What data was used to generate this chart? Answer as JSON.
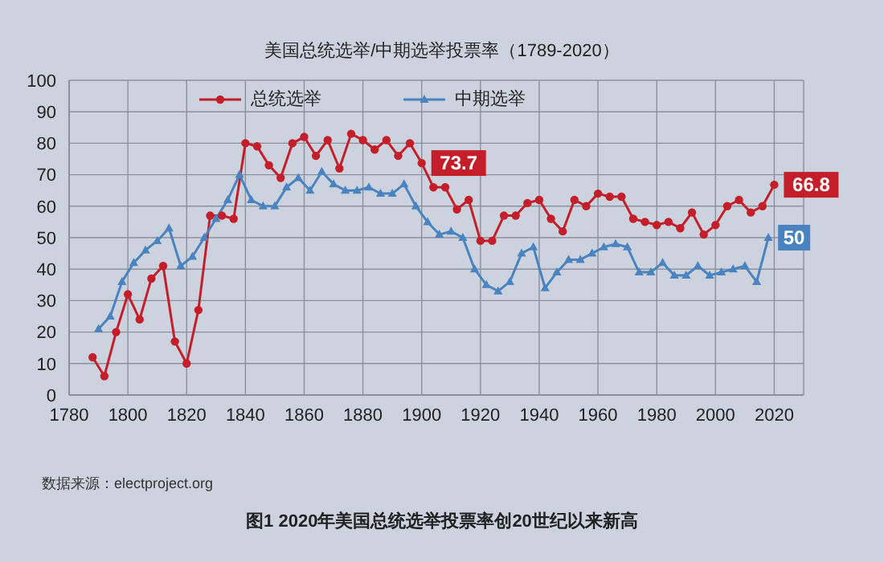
{
  "chart_data": {
    "type": "line",
    "title": "美国总统选举/中期选举投票率（1789-2020）",
    "annotations": [
      "数据来源：electproject.org",
      "图1 2020年美国总统选举投票率创20世纪以来新高"
    ],
    "xlim": [
      1780,
      2030
    ],
    "xticks": [
      1780,
      1800,
      1820,
      1840,
      1860,
      1880,
      1900,
      1920,
      1940,
      1960,
      1980,
      2000,
      2020
    ],
    "ylim": [
      0,
      100
    ],
    "yticks": [
      0,
      10,
      20,
      30,
      40,
      50,
      60,
      70,
      80,
      90,
      100
    ],
    "grid": true,
    "legend": "top",
    "line_style": "solid",
    "series": [
      {
        "name": "总统选举",
        "color": "#c41e2a",
        "marker": "circle",
        "x": [
          1788,
          1792,
          1796,
          1800,
          1804,
          1808,
          1812,
          1816,
          1820,
          1824,
          1828,
          1832,
          1836,
          1840,
          1844,
          1848,
          1852,
          1856,
          1860,
          1864,
          1868,
          1872,
          1876,
          1880,
          1884,
          1888,
          1892,
          1896,
          1900,
          1904,
          1908,
          1912,
          1916,
          1920,
          1924,
          1928,
          1932,
          1936,
          1940,
          1944,
          1948,
          1952,
          1956,
          1960,
          1964,
          1968,
          1972,
          1976,
          1980,
          1984,
          1988,
          1992,
          1996,
          2000,
          2004,
          2008,
          2012,
          2016,
          2020
        ],
        "values": [
          12,
          6,
          20,
          32,
          24,
          37,
          41,
          17,
          10,
          27,
          57,
          57,
          56,
          80,
          79,
          73,
          69,
          80,
          82,
          76,
          81,
          72,
          83,
          81,
          78,
          81,
          76,
          80,
          73.7,
          66,
          66,
          59,
          62,
          49,
          49,
          57,
          57,
          61,
          62,
          56,
          52,
          62,
          60,
          64,
          63,
          63,
          56,
          55,
          54,
          55,
          53,
          58,
          51,
          54,
          60,
          62,
          58,
          60,
          66.8
        ],
        "value_labels": [
          null,
          null,
          null,
          null,
          null,
          null,
          null,
          null,
          null,
          null,
          null,
          null,
          null,
          null,
          null,
          null,
          null,
          null,
          null,
          null,
          null,
          null,
          null,
          null,
          null,
          null,
          null,
          null,
          "73.7",
          null,
          null,
          null,
          null,
          null,
          null,
          null,
          null,
          null,
          null,
          null,
          null,
          null,
          null,
          null,
          null,
          null,
          null,
          null,
          null,
          null,
          null,
          null,
          null,
          null,
          null,
          null,
          null,
          null,
          "66.8"
        ]
      },
      {
        "name": "中期选举",
        "color": "#4a84c0",
        "marker": "triangle",
        "x": [
          1790,
          1794,
          1798,
          1802,
          1806,
          1810,
          1814,
          1818,
          1822,
          1826,
          1830,
          1834,
          1838,
          1842,
          1846,
          1850,
          1854,
          1858,
          1862,
          1866,
          1870,
          1874,
          1878,
          1882,
          1886,
          1890,
          1894,
          1898,
          1902,
          1906,
          1910,
          1914,
          1918,
          1922,
          1926,
          1930,
          1934,
          1938,
          1942,
          1946,
          1950,
          1954,
          1958,
          1962,
          1966,
          1970,
          1974,
          1978,
          1982,
          1986,
          1990,
          1994,
          1998,
          2002,
          2006,
          2010,
          2014,
          2018
        ],
        "values": [
          21,
          25,
          36,
          42,
          46,
          49,
          53,
          41,
          44,
          50,
          56,
          62,
          70,
          62,
          60,
          60,
          66,
          69,
          65,
          71,
          67,
          65,
          65,
          66,
          64,
          64,
          67,
          60,
          55,
          51,
          52,
          50,
          40,
          35,
          33,
          36,
          45,
          47,
          34,
          39,
          43,
          43,
          45,
          47,
          48,
          47,
          39,
          39,
          42,
          38,
          38,
          41,
          38,
          39,
          40,
          41,
          36,
          50
        ],
        "value_labels": [
          null,
          null,
          null,
          null,
          null,
          null,
          null,
          null,
          null,
          null,
          null,
          null,
          null,
          null,
          null,
          null,
          null,
          null,
          null,
          null,
          null,
          null,
          null,
          null,
          null,
          null,
          null,
          null,
          null,
          null,
          null,
          null,
          null,
          null,
          null,
          null,
          null,
          null,
          null,
          null,
          null,
          null,
          null,
          null,
          null,
          null,
          null,
          null,
          null,
          null,
          null,
          null,
          null,
          null,
          null,
          null,
          null,
          "50"
        ]
      }
    ]
  }
}
